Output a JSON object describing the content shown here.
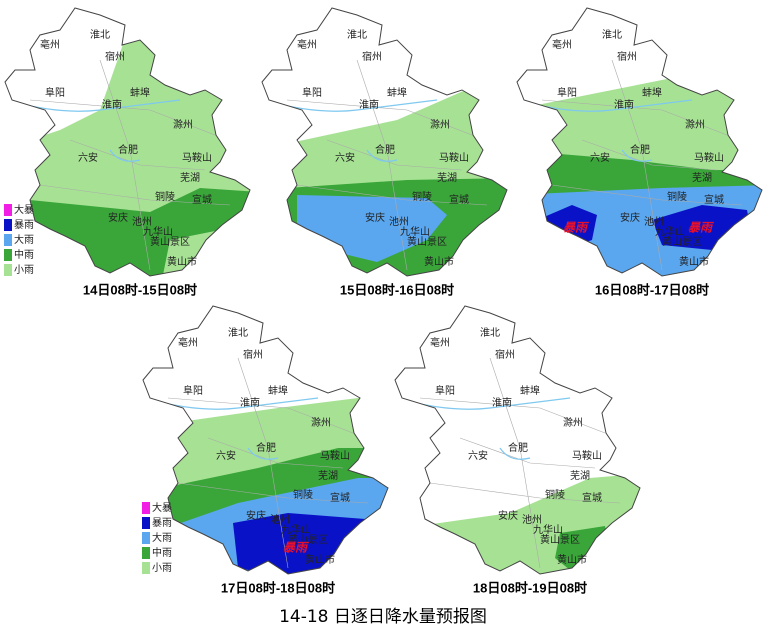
{
  "title": "14-18 日逐日降水量预报图",
  "legend": {
    "labels": [
      "大暴",
      "暴雨",
      "大雨",
      "中雨",
      "小雨"
    ],
    "colors": [
      "#f21ee6",
      "#0a12c8",
      "#5aa7f0",
      "#3aa63a",
      "#a7e294"
    ]
  },
  "cities": [
    "亳州",
    "淮北",
    "宿州",
    "阜阳",
    "蚌埠",
    "淮南",
    "滁州",
    "六安",
    "合肥",
    "马鞍山",
    "芜湖",
    "铜陵",
    "宣城",
    "安庆",
    "池州",
    "九华山",
    "黄山景区",
    "黄山市"
  ],
  "panels": [
    {
      "caption": "14日08时-15日08时",
      "legend": true
    },
    {
      "caption": "15日08时-16日08时",
      "legend": false
    },
    {
      "caption": "16日08时-17日08时",
      "legend": false,
      "annotations": [
        "暴雨",
        "暴雨"
      ]
    },
    {
      "caption": "17日08时-18日08时",
      "legend": true,
      "annotations": [
        "暴雨"
      ]
    },
    {
      "caption": "18日08时-19日08时",
      "legend": false
    }
  ]
}
